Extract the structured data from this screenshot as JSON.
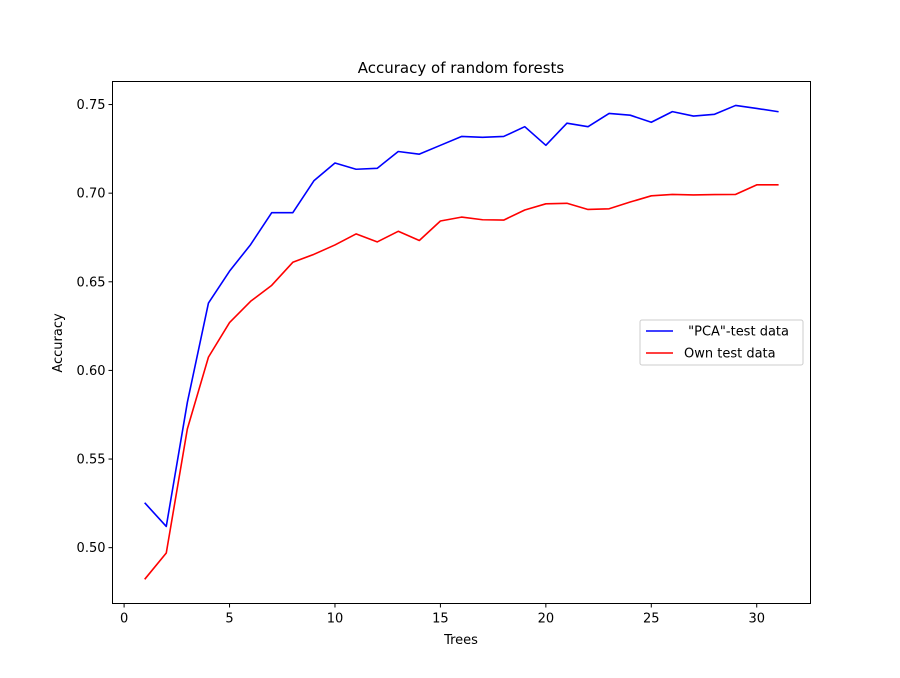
{
  "chart_data": {
    "type": "line",
    "title": "Accuracy of random forests",
    "xlabel": "Trees",
    "ylabel": "Accuracy",
    "xlim": [
      -0.55,
      32.55
    ],
    "ylim": [
      0.4685,
      0.763
    ],
    "xticks": [
      0,
      5,
      10,
      15,
      20,
      25,
      30
    ],
    "yticks": [
      0.5,
      0.55,
      0.6,
      0.65,
      0.7,
      0.75
    ],
    "ytick_labels": [
      "0.50",
      "0.55",
      "0.60",
      "0.65",
      "0.70",
      "0.75"
    ],
    "x": [
      1,
      2,
      3,
      4,
      5,
      6,
      7,
      8,
      9,
      10,
      11,
      12,
      13,
      14,
      15,
      16,
      17,
      18,
      19,
      20,
      21,
      22,
      23,
      24,
      25,
      26,
      27,
      28,
      29,
      30,
      31
    ],
    "legend_position": "center-right",
    "grid": false,
    "series": [
      {
        "name": " \"PCA\"-test data",
        "color": "#0000ff",
        "values": [
          0.525,
          0.512,
          0.582,
          0.638,
          0.656,
          0.671,
          0.689,
          0.689,
          0.707,
          0.717,
          0.7135,
          0.714,
          0.7235,
          0.722,
          0.727,
          0.732,
          0.7315,
          0.732,
          0.7375,
          0.727,
          0.7395,
          0.7375,
          0.745,
          0.744,
          0.74,
          0.746,
          0.7435,
          0.7445,
          0.7495,
          0.7478,
          0.746
        ]
      },
      {
        "name": "Own test data",
        "color": "#ff0000",
        "values": [
          0.4825,
          0.497,
          0.567,
          0.6075,
          0.627,
          0.639,
          0.648,
          0.661,
          0.6655,
          0.6708,
          0.677,
          0.6725,
          0.6785,
          0.6733,
          0.6843,
          0.6865,
          0.685,
          0.6848,
          0.6905,
          0.694,
          0.6943,
          0.6908,
          0.6912,
          0.695,
          0.6985,
          0.6993,
          0.699,
          0.6992,
          0.6993,
          0.7047,
          0.7047
        ]
      }
    ]
  }
}
